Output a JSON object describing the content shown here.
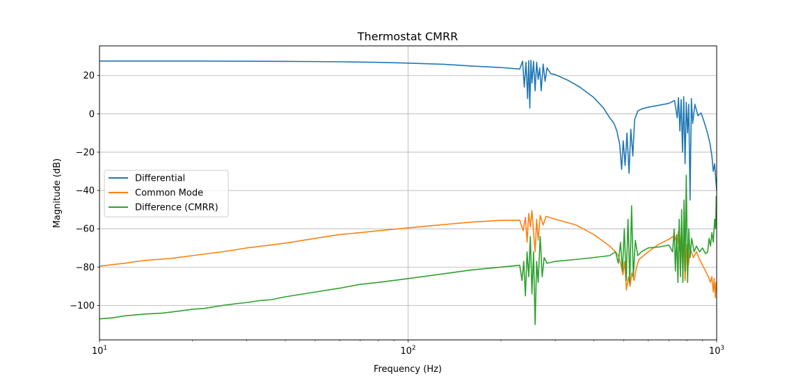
{
  "chart_data": {
    "type": "line",
    "title": "Thermostat CMRR",
    "xlabel": "Frequency (Hz)",
    "ylabel": "Magnitude (dB)",
    "xscale": "log",
    "xlim": [
      10,
      1000
    ],
    "ylim": [
      -118,
      35.5
    ],
    "xticks": [
      10,
      100,
      1000
    ],
    "xtick_labels": [
      {
        "base": "10",
        "exp": "1"
      },
      {
        "base": "10",
        "exp": "2"
      },
      {
        "base": "10",
        "exp": "3"
      }
    ],
    "yticks": [
      20,
      0,
      -20,
      -40,
      -60,
      -80,
      -100
    ],
    "ytick_labels": [
      "20",
      "0",
      "−20",
      "−40",
      "−60",
      "−80",
      "−100"
    ],
    "grid": true,
    "legend_position": "center-left",
    "series": [
      {
        "name": "Differential",
        "color": "#1f77b4",
        "points": [
          [
            10,
            27.6
          ],
          [
            20,
            27.6
          ],
          [
            40,
            27.4
          ],
          [
            60,
            27.2
          ],
          [
            80,
            26.9
          ],
          [
            100,
            26.5
          ],
          [
            130,
            25.9
          ],
          [
            160,
            25.0
          ],
          [
            200,
            24.2
          ],
          [
            230,
            23.4
          ],
          [
            235,
            27.5
          ],
          [
            238,
            14.0
          ],
          [
            241,
            27.0
          ],
          [
            244,
            8.0
          ],
          [
            246,
            27.8
          ],
          [
            248,
            3.0
          ],
          [
            250,
            28.0
          ],
          [
            252,
            16.0
          ],
          [
            255,
            27.5
          ],
          [
            258,
            12.0
          ],
          [
            261,
            27.0
          ],
          [
            264,
            18.0
          ],
          [
            267,
            24.0
          ],
          [
            270,
            12.0
          ],
          [
            274,
            26.0
          ],
          [
            278,
            17.0
          ],
          [
            282,
            24.0
          ],
          [
            290,
            21.0
          ],
          [
            300,
            20.5
          ],
          [
            330,
            17.5
          ],
          [
            360,
            14.0
          ],
          [
            400,
            8.5
          ],
          [
            430,
            3.0
          ],
          [
            450,
            -2.0
          ],
          [
            465,
            -5.0
          ],
          [
            475,
            -9.0
          ],
          [
            485,
            -16.0
          ],
          [
            492,
            -29.0
          ],
          [
            498,
            -14.0
          ],
          [
            505,
            -27.0
          ],
          [
            512,
            -10.0
          ],
          [
            520,
            -31.0
          ],
          [
            527,
            -8.0
          ],
          [
            535,
            -22.0
          ],
          [
            542,
            -3.0
          ],
          [
            555,
            1.5
          ],
          [
            570,
            2.5
          ],
          [
            600,
            3.5
          ],
          [
            650,
            4.5
          ],
          [
            700,
            5.5
          ],
          [
            730,
            7.0
          ],
          [
            745,
            -2.0
          ],
          [
            752,
            8.5
          ],
          [
            760,
            -9.0
          ],
          [
            767,
            7.5
          ],
          [
            775,
            -20.0
          ],
          [
            782,
            9.0
          ],
          [
            790,
            -26.0
          ],
          [
            797,
            6.0
          ],
          [
            805,
            -10.0
          ],
          [
            812,
            5.0
          ],
          [
            820,
            -45.0
          ],
          [
            828,
            8.0
          ],
          [
            836,
            -5.0
          ],
          [
            850,
            5.0
          ],
          [
            870,
            -1.0
          ],
          [
            890,
            0.5
          ],
          [
            910,
            -4.0
          ],
          [
            930,
            -9.0
          ],
          [
            950,
            -15.0
          ],
          [
            965,
            -22.0
          ],
          [
            975,
            -30.0
          ],
          [
            985,
            -26.0
          ],
          [
            992,
            -33.0
          ],
          [
            1000,
            -40.0
          ]
        ]
      },
      {
        "name": "Common Mode",
        "color": "#ff7f0e",
        "points": [
          [
            10,
            -79.5
          ],
          [
            12,
            -78.0
          ],
          [
            14,
            -76.5
          ],
          [
            17,
            -75.5
          ],
          [
            20,
            -74.0
          ],
          [
            25,
            -72.0
          ],
          [
            30,
            -70.0
          ],
          [
            40,
            -67.5
          ],
          [
            50,
            -65.0
          ],
          [
            60,
            -63.0
          ],
          [
            70,
            -62.0
          ],
          [
            80,
            -61.0
          ],
          [
            100,
            -59.5
          ],
          [
            130,
            -57.8
          ],
          [
            160,
            -56.5
          ],
          [
            200,
            -55.6
          ],
          [
            230,
            -55.5
          ],
          [
            236,
            -61.0
          ],
          [
            240,
            -54.0
          ],
          [
            243,
            -67.0
          ],
          [
            246,
            -52.0
          ],
          [
            249,
            -59.0
          ],
          [
            252,
            -50.5
          ],
          [
            255,
            -62.0
          ],
          [
            258,
            -72.0
          ],
          [
            261,
            -55.0
          ],
          [
            264,
            -66.0
          ],
          [
            268,
            -53.0
          ],
          [
            274,
            -58.0
          ],
          [
            280,
            -53.5
          ],
          [
            300,
            -55.0
          ],
          [
            350,
            -58.0
          ],
          [
            400,
            -63.0
          ],
          [
            450,
            -69.0
          ],
          [
            470,
            -72.0
          ],
          [
            480,
            -74.0
          ],
          [
            490,
            -79.0
          ],
          [
            497,
            -84.0
          ],
          [
            503,
            -77.0
          ],
          [
            510,
            -92.0
          ],
          [
            517,
            -85.0
          ],
          [
            524,
            -90.0
          ],
          [
            531,
            -83.0
          ],
          [
            540,
            -87.0
          ],
          [
            550,
            -80.0
          ],
          [
            560,
            -76.0
          ],
          [
            600,
            -72.0
          ],
          [
            650,
            -68.0
          ],
          [
            700,
            -65.5
          ],
          [
            730,
            -63.5
          ],
          [
            745,
            -68.0
          ],
          [
            752,
            -61.0
          ],
          [
            760,
            -72.0
          ],
          [
            767,
            -63.0
          ],
          [
            775,
            -80.0
          ],
          [
            782,
            -64.0
          ],
          [
            790,
            -87.0
          ],
          [
            800,
            -68.0
          ],
          [
            810,
            -79.0
          ],
          [
            820,
            -70.0
          ],
          [
            840,
            -75.0
          ],
          [
            860,
            -72.0
          ],
          [
            880,
            -76.0
          ],
          [
            900,
            -79.0
          ],
          [
            920,
            -82.0
          ],
          [
            940,
            -85.0
          ],
          [
            955,
            -88.0
          ],
          [
            965,
            -85.0
          ],
          [
            975,
            -93.0
          ],
          [
            982,
            -86.0
          ],
          [
            990,
            -96.0
          ],
          [
            995,
            -88.0
          ],
          [
            1000,
            -92.0
          ]
        ]
      },
      {
        "name": "Difference (CMRR)",
        "color": "#2ca02c",
        "points": [
          [
            10,
            -107.0
          ],
          [
            11,
            -106.5
          ],
          [
            12,
            -105.5
          ],
          [
            14,
            -104.5
          ],
          [
            16,
            -104.0
          ],
          [
            18,
            -103.0
          ],
          [
            20,
            -102.0
          ],
          [
            22,
            -101.5
          ],
          [
            25,
            -100.0
          ],
          [
            28,
            -99.0
          ],
          [
            30,
            -98.5
          ],
          [
            33,
            -97.5
          ],
          [
            36,
            -97.0
          ],
          [
            40,
            -95.5
          ],
          [
            50,
            -93.0
          ],
          [
            60,
            -91.0
          ],
          [
            70,
            -89.0
          ],
          [
            80,
            -88.0
          ],
          [
            100,
            -86.0
          ],
          [
            130,
            -83.5
          ],
          [
            160,
            -81.5
          ],
          [
            200,
            -80.0
          ],
          [
            230,
            -79.0
          ],
          [
            234,
            -87.0
          ],
          [
            237,
            -77.0
          ],
          [
            240,
            -95.0
          ],
          [
            243,
            -72.0
          ],
          [
            246,
            -85.0
          ],
          [
            249,
            -64.0
          ],
          [
            252,
            -94.0
          ],
          [
            255,
            -72.0
          ],
          [
            258,
            -110.0
          ],
          [
            261,
            -77.0
          ],
          [
            264,
            -88.0
          ],
          [
            268,
            -64.0
          ],
          [
            272,
            -85.0
          ],
          [
            276,
            -75.0
          ],
          [
            282,
            -78.0
          ],
          [
            300,
            -77.0
          ],
          [
            350,
            -76.0
          ],
          [
            400,
            -75.0
          ],
          [
            450,
            -74.0
          ],
          [
            470,
            -72.0
          ],
          [
            480,
            -78.0
          ],
          [
            488,
            -67.0
          ],
          [
            495,
            -82.0
          ],
          [
            502,
            -60.0
          ],
          [
            509,
            -87.0
          ],
          [
            516,
            -55.0
          ],
          [
            523,
            -88.0
          ],
          [
            530,
            -48.0
          ],
          [
            537,
            -85.0
          ],
          [
            545,
            -66.0
          ],
          [
            555,
            -74.0
          ],
          [
            570,
            -72.0
          ],
          [
            600,
            -70.0
          ],
          [
            650,
            -69.5
          ],
          [
            700,
            -68.5
          ],
          [
            720,
            -72.0
          ],
          [
            728,
            -60.0
          ],
          [
            735,
            -82.0
          ],
          [
            742,
            -63.0
          ],
          [
            749,
            -88.0
          ],
          [
            756,
            -55.0
          ],
          [
            763,
            -85.0
          ],
          [
            770,
            -50.0
          ],
          [
            777,
            -88.0
          ],
          [
            784,
            -45.0
          ],
          [
            790,
            -82.0
          ],
          [
            797,
            -32.0
          ],
          [
            805,
            -88.0
          ],
          [
            812,
            -60.0
          ],
          [
            820,
            -75.0
          ],
          [
            830,
            -65.0
          ],
          [
            845,
            -72.0
          ],
          [
            860,
            -69.0
          ],
          [
            880,
            -72.0
          ],
          [
            900,
            -70.0
          ],
          [
            920,
            -73.0
          ],
          [
            935,
            -72.0
          ],
          [
            945,
            -65.0
          ],
          [
            955,
            -69.0
          ],
          [
            965,
            -62.0
          ],
          [
            975,
            -67.0
          ],
          [
            985,
            -55.0
          ],
          [
            992,
            -60.0
          ],
          [
            997,
            -43.0
          ],
          [
            1000,
            -50.0
          ]
        ]
      }
    ]
  }
}
